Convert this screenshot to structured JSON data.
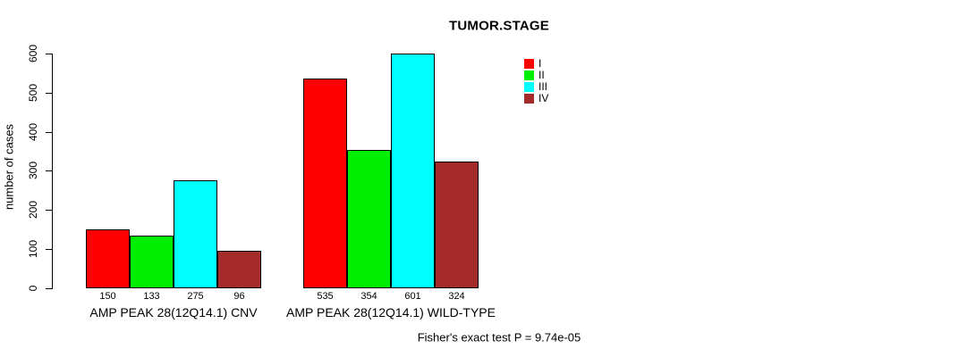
{
  "chart_data": {
    "type": "bar",
    "title": "TUMOR.STAGE",
    "ylabel": "number of cases",
    "xlabel": "",
    "ylim": [
      0,
      600
    ],
    "yticks": [
      0,
      100,
      200,
      300,
      400,
      500,
      600
    ],
    "grid": false,
    "legend_position": "top-right",
    "bar_value_labels_shown": true,
    "categories": [
      "AMP PEAK 28(12Q14.1) CNV",
      "AMP PEAK 28(12Q14.1) WILD-TYPE"
    ],
    "series": [
      {
        "name": "I",
        "color": "#ff0000",
        "values": [
          150,
          535
        ]
      },
      {
        "name": "II",
        "color": "#00ee00",
        "values": [
          133,
          354
        ]
      },
      {
        "name": "III",
        "color": "#00ffff",
        "values": [
          275,
          601
        ]
      },
      {
        "name": "IV",
        "color": "#a52a2a",
        "values": [
          96,
          324
        ]
      }
    ],
    "annotation": "Fisher's exact test P = 9.74e-05"
  }
}
